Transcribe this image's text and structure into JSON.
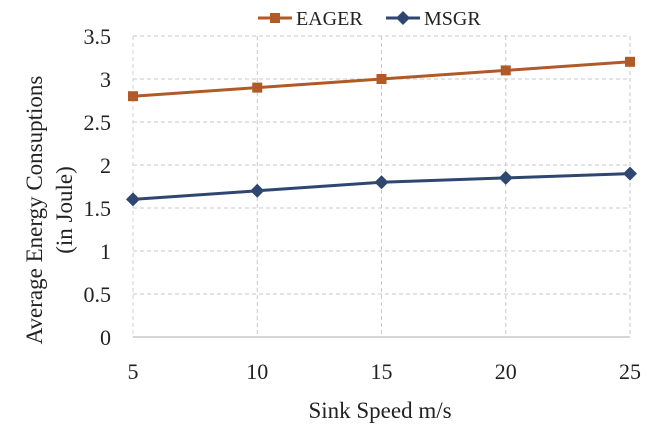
{
  "chart_data": {
    "type": "line",
    "x": [
      5,
      10,
      15,
      20,
      25
    ],
    "series": [
      {
        "name": "EAGER",
        "values": [
          2.8,
          2.9,
          3.0,
          3.1,
          3.2
        ],
        "color": "#b05a28",
        "marker": "square"
      },
      {
        "name": "MSGR",
        "values": [
          1.6,
          1.7,
          1.8,
          1.85,
          1.9
        ],
        "color": "#2e4670",
        "marker": "diamond"
      }
    ],
    "xlabel": "Sink Speed m/s",
    "ylabel_lines": [
      "Average Energy Consuptions",
      "(in Joule)"
    ],
    "ylim": [
      0,
      3.5
    ],
    "yticks": [
      "0",
      "0.5",
      "1",
      "1.5",
      "2",
      "2.5",
      "3",
      "3.5"
    ],
    "xticks": [
      "5",
      "10",
      "15",
      "20",
      "25"
    ],
    "grid": true,
    "legend_position": "top"
  }
}
